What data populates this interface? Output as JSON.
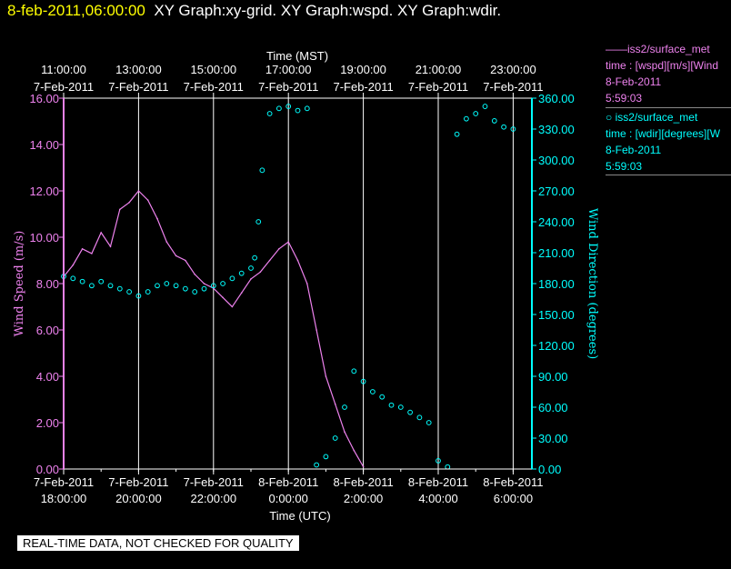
{
  "header": {
    "timestamp": "8-feb-2011,06:00:00",
    "graphs": "XY Graph:xy-grid.  XY Graph:wspd.  XY Graph:wdir."
  },
  "legend": {
    "wspd": {
      "line1": "——iss2/surface_met",
      "line2": "time : [wspd][m/s][Wind",
      "line3": "8-Feb-2011",
      "line4": "5:59:03"
    },
    "wdir": {
      "line1": "○ iss2/surface_met",
      "line2": "time : [wdir][degrees][W",
      "line3": "8-Feb-2011",
      "line4": "5:59:03"
    }
  },
  "footer_note": "REAL-TIME DATA, NOT CHECKED FOR QUALITY",
  "colors": {
    "wspd": "#ee82ee",
    "wdir": "#00ffff",
    "axis_top": "#ffffff",
    "grid": "#ffffff",
    "header_ts": "#ffff00"
  },
  "chart_data": {
    "type": "line",
    "top_axis": {
      "label": "Time (MST)",
      "tick_hours": [
        11,
        13,
        15,
        17,
        19,
        21,
        23
      ],
      "tick_times": [
        "11:00:00",
        "13:00:00",
        "15:00:00",
        "17:00:00",
        "19:00:00",
        "21:00:00",
        "23:00:00"
      ],
      "tick_dates": [
        "7-Feb-2011",
        "7-Feb-2011",
        "7-Feb-2011",
        "7-Feb-2011",
        "7-Feb-2011",
        "7-Feb-2011",
        "7-Feb-2011"
      ]
    },
    "bottom_axis": {
      "label": "Time (UTC)",
      "xlim_hours": [
        18,
        30.5
      ],
      "tick_hours": [
        18,
        20,
        22,
        24,
        26,
        28,
        30
      ],
      "tick_dates": [
        "7-Feb-2011",
        "7-Feb-2011",
        "7-Feb-2011",
        "8-Feb-2011",
        "8-Feb-2011",
        "8-Feb-2011",
        "8-Feb-2011"
      ],
      "tick_times": [
        "18:00:00",
        "20:00:00",
        "22:00:00",
        "0:00:00",
        "2:00:00",
        "4:00:00",
        "6:00:00"
      ]
    },
    "left_axis": {
      "label": "Wind Speed (m/s)",
      "ylim": [
        0,
        16
      ],
      "ticks": [
        "0.00",
        "2.00",
        "4.00",
        "6.00",
        "8.00",
        "10.00",
        "12.00",
        "14.00",
        "16.00"
      ]
    },
    "right_axis": {
      "label": "Wind Direction (degrees)",
      "ylim": [
        0,
        360
      ],
      "ticks": [
        "0.00",
        "30.00",
        "60.00",
        "90.00",
        "120.00",
        "150.00",
        "180.00",
        "210.00",
        "240.00",
        "270.00",
        "300.00",
        "330.00",
        "360.00"
      ]
    },
    "grid": "vertical",
    "series": [
      {
        "key": "wspd",
        "style": "line",
        "axis": "left",
        "x": [
          18.0,
          18.25,
          18.5,
          18.75,
          19.0,
          19.25,
          19.5,
          19.75,
          20.0,
          20.25,
          20.5,
          20.75,
          21.0,
          21.25,
          21.5,
          21.75,
          22.0,
          22.25,
          22.5,
          22.75,
          23.0,
          23.25,
          23.5,
          23.75,
          24.0,
          24.25,
          24.5,
          24.75,
          25.0,
          25.25,
          25.5,
          25.75,
          26.0
        ],
        "y": [
          8.3,
          8.8,
          9.5,
          9.3,
          10.2,
          9.6,
          11.2,
          11.5,
          12.0,
          11.6,
          10.8,
          9.8,
          9.2,
          9.0,
          8.4,
          8.0,
          7.8,
          7.4,
          7.0,
          7.6,
          8.2,
          8.5,
          9.0,
          9.5,
          9.8,
          9.0,
          8.0,
          6.0,
          4.0,
          2.8,
          1.6,
          0.8,
          0.1
        ]
      },
      {
        "key": "wdir",
        "style": "scatter",
        "axis": "right",
        "x": [
          18.0,
          18.25,
          18.5,
          18.75,
          19.0,
          19.25,
          19.5,
          19.75,
          20.0,
          20.25,
          20.5,
          20.75,
          21.0,
          21.25,
          21.5,
          21.75,
          22.0,
          22.25,
          22.5,
          22.75,
          23.0,
          23.1,
          23.2,
          23.3,
          23.5,
          23.75,
          24.0,
          24.25,
          24.5,
          24.75,
          25.0,
          25.25,
          25.5,
          25.75,
          26.0,
          26.25,
          26.5,
          26.75,
          27.0,
          27.25,
          27.5,
          27.75,
          28.0,
          28.25,
          28.5,
          28.75,
          29.0,
          29.25,
          29.5,
          29.75,
          30.0
        ],
        "y": [
          187,
          185,
          182,
          178,
          182,
          178,
          175,
          172,
          168,
          172,
          178,
          180,
          178,
          175,
          172,
          175,
          178,
          180,
          185,
          190,
          195,
          205,
          240,
          290,
          345,
          350,
          352,
          348,
          350,
          4,
          12,
          30,
          60,
          95,
          85,
          75,
          70,
          62,
          60,
          55,
          50,
          45,
          8,
          2,
          325,
          340,
          345,
          352,
          338,
          332,
          330
        ]
      }
    ]
  }
}
